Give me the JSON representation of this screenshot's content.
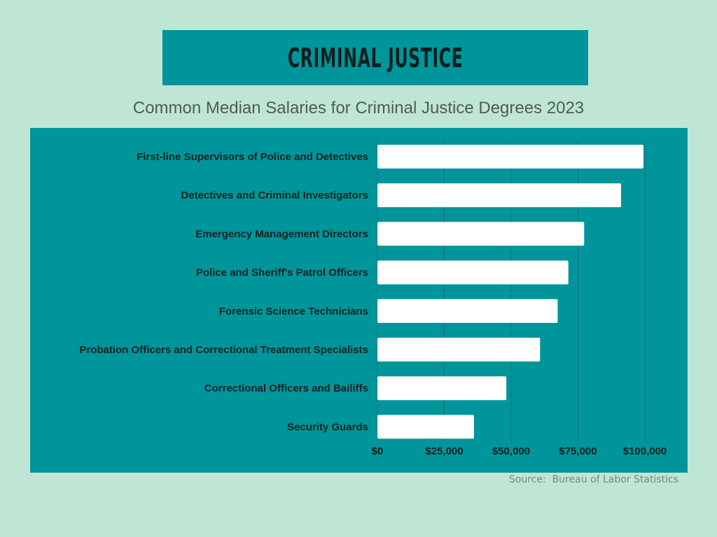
{
  "header": {
    "title": "Criminal Justice",
    "subtitle": "Common Median Salaries for Criminal Justice Degrees 2023"
  },
  "footer": {
    "source": "Source:  Bureau of Labor Statistics"
  },
  "colors": {
    "background": "#bfe6d5",
    "panel": "#00959a",
    "bar": "#ffffff",
    "gridline": "#0b7478"
  },
  "chart_data": {
    "type": "bar",
    "orientation": "horizontal",
    "categories": [
      "First-line Supervisors of Police and Detectives",
      "Detectives and Criminal Investigators",
      "Emergency Management Directors",
      "Police and Sheriff's Patrol Officers",
      "Forensic Science Technicians",
      "Probation Officers and Correctional Treatment Specialists",
      "Correctional Officers and Bailiffs",
      "Security Guards"
    ],
    "values": [
      99500,
      91100,
      77300,
      71400,
      67400,
      60800,
      48200,
      36100
    ],
    "xlim": [
      0,
      100000
    ],
    "xticks": [
      0,
      25000,
      50000,
      75000,
      100000
    ],
    "xtick_labels": [
      "$0",
      "$25,000",
      "$50,000",
      "$75,000",
      "$100,000"
    ],
    "grid": true
  }
}
